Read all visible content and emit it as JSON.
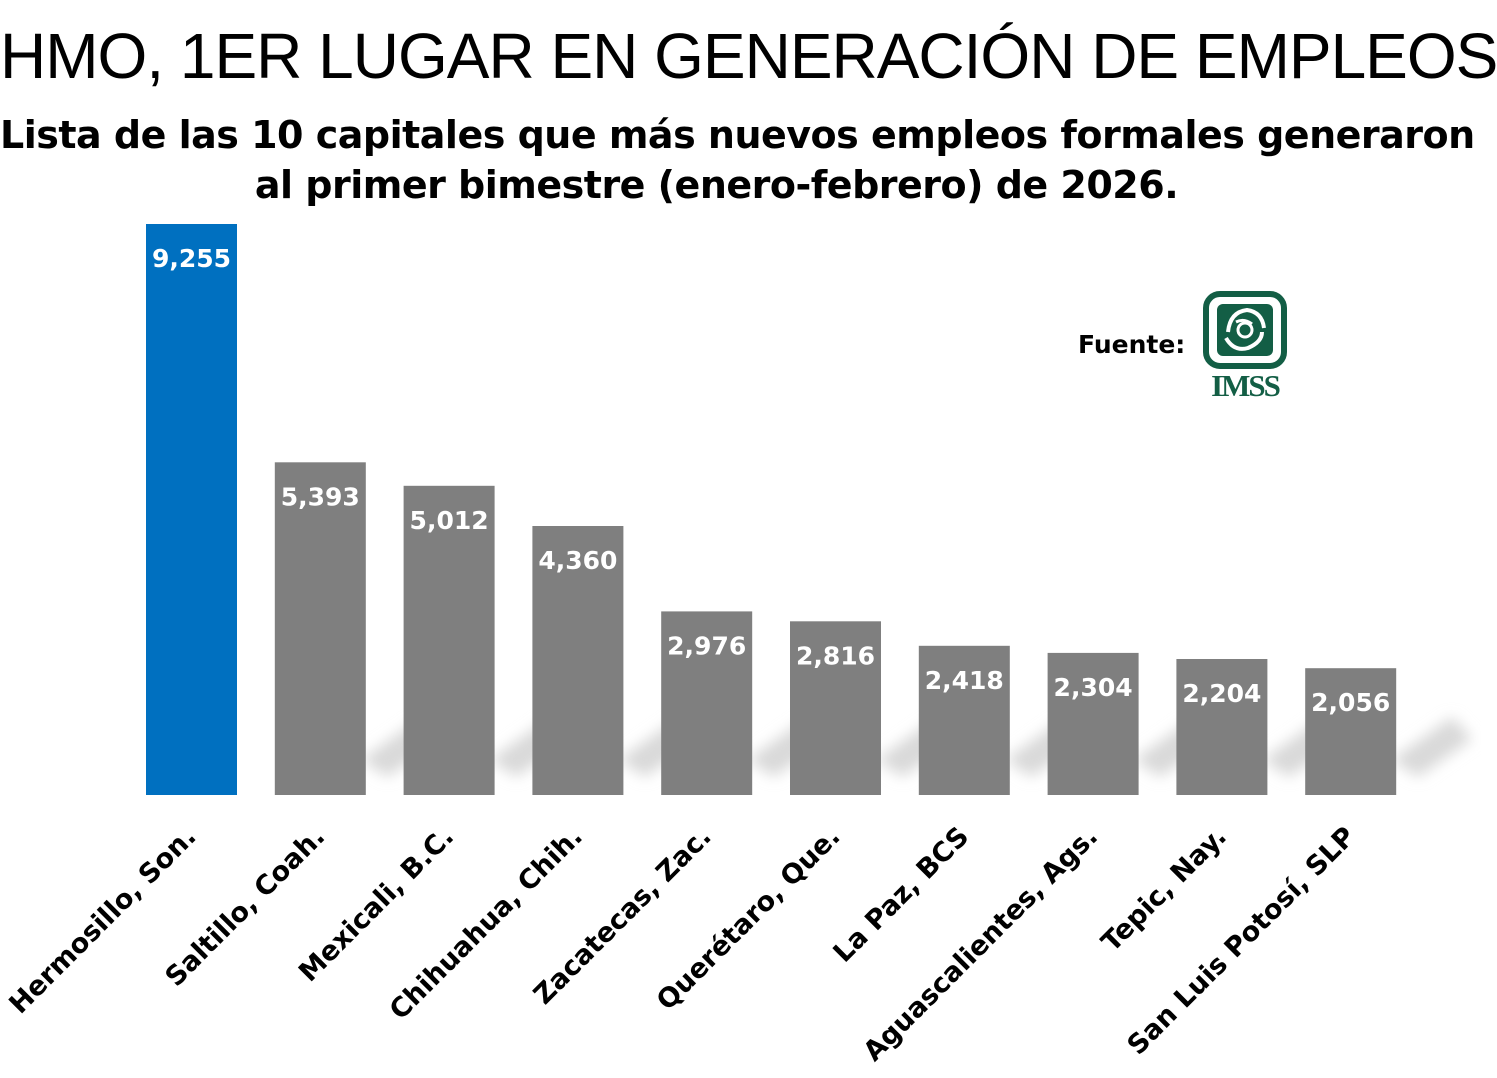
{
  "title": "HMO, 1ER LUGAR EN GENERACIÓN DE EMPLEOS",
  "subtitle_lines": [
    "Lista de las 10 capitales que más nuevos empleos formales generaron",
    "al primer bimestre (enero-febrero) de 2026."
  ],
  "source_label": "Fuente:",
  "source_logo_text": "IMSS",
  "colors": {
    "highlight": "#0070C0",
    "bar": "#7F7F7F",
    "logo_green": "#135E45",
    "shadow": "#d9d9d9"
  },
  "chart_data": {
    "type": "bar",
    "categories": [
      "Hermosillo, Son.",
      "Saltillo, Coah.",
      "Mexicali, B.C.",
      "Chihuahua, Chih.",
      "Zacatecas, Zac.",
      "Querétaro, Que.",
      "La Paz, BCS",
      "Aguascalientes, Ags.",
      "Tepic, Nay.",
      "San Luis Potosí, SLP"
    ],
    "values": [
      9255,
      5393,
      5012,
      4360,
      2976,
      2816,
      2418,
      2304,
      2204,
      2056
    ],
    "value_labels": [
      "9,255",
      "5,393",
      "5,012",
      "4,360",
      "2,976",
      "2,816",
      "2,418",
      "2,304",
      "2,204",
      "2,056"
    ],
    "highlight_index": 0,
    "ylim": [
      0,
      9255
    ],
    "grid": false,
    "data_labels_position": "inside-top"
  }
}
